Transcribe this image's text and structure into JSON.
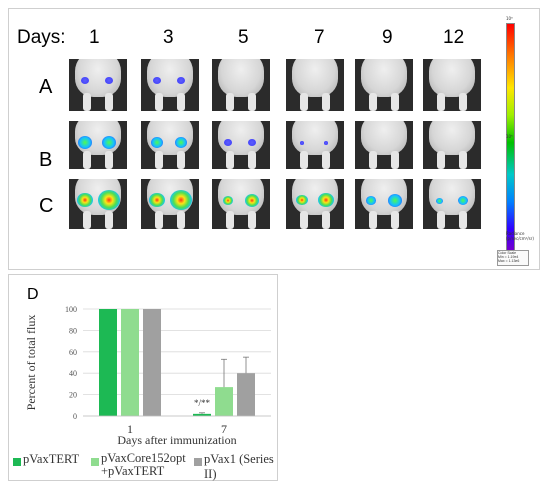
{
  "panel_top": {
    "days_label": "Days:",
    "days": [
      "1",
      "3",
      "5",
      "7",
      "9",
      "12"
    ],
    "rows": [
      "A",
      "B",
      "C"
    ],
    "colorbar": {
      "top_tick": "10⁶",
      "mid_tick": "10⁵",
      "title": "Radiance (p/sec/cm²/sr)",
      "info_lines": [
        "Color Scale",
        "Min = 1.19e4",
        "Max = 1.13e6"
      ]
    }
  },
  "panel_bottom": {
    "label": "D",
    "legend": [
      {
        "text": "pVaxTERT",
        "color": "#1db954"
      },
      {
        "text": "pVaxCore152opt +pVaxTERT",
        "color": "#8fdc8f"
      },
      {
        "text": "pVax1 (Series II)",
        "color": "#a0a0a0"
      }
    ],
    "significance": "*/**"
  },
  "chart_data": {
    "type": "bar",
    "categories": [
      "1",
      "7"
    ],
    "series": [
      {
        "name": "pVaxTERT",
        "values": [
          100,
          2
        ],
        "errors": [
          0,
          1
        ],
        "color": "#1db954"
      },
      {
        "name": "pVaxCore152opt +pVaxTERT",
        "values": [
          100,
          27
        ],
        "errors": [
          0,
          26
        ],
        "color": "#8fdc8f"
      },
      {
        "name": "pVax1 (Series II)",
        "values": [
          100,
          40
        ],
        "errors": [
          0,
          15
        ],
        "color": "#a0a0a0"
      }
    ],
    "xlabel": "Days after immunization",
    "ylabel": "Percent of total flux",
    "ylim": [
      0,
      100
    ],
    "yticks": [
      "0",
      "20",
      "40",
      "60",
      "80",
      "100"
    ],
    "grid": true
  }
}
